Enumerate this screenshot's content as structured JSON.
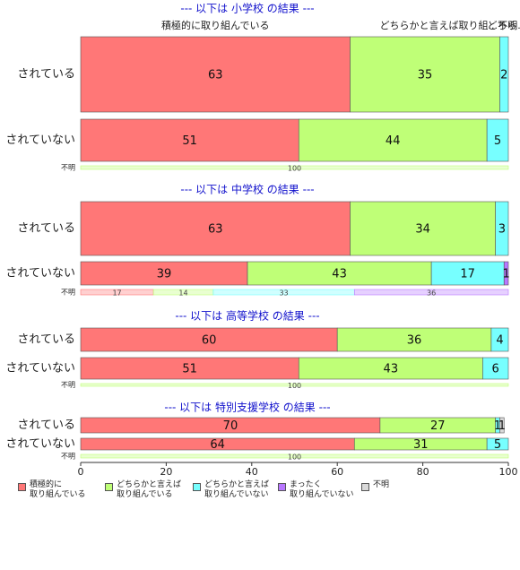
{
  "chart_data": {
    "type": "bar",
    "orientation": "horizontal",
    "stacked": true,
    "series": [
      {
        "name": "積極的に\n取り組んでいる",
        "color": "#ff7777"
      },
      {
        "name": "どちらかと言えば\n取り組んでいる",
        "color": "#bfff77"
      },
      {
        "name": "どちらかと言えば\n取り組んでいない",
        "color": "#77ffff"
      },
      {
        "name": "まったく\n取り組んでいない",
        "color": "#b877ff"
      },
      {
        "name": "不明",
        "color": "#d9d9d9"
      }
    ],
    "panels": [
      {
        "title": "--- 以下は 小学校 の結果 ---",
        "header_labels": [
          "積極的に取り組んでいる",
          "どちらかと言えば取り組...",
          "どちら",
          "不明."
        ],
        "categories": [
          "されている",
          "されていない",
          "不明"
        ],
        "values": [
          [
            63,
            35,
            2,
            null,
            null
          ],
          [
            51,
            44,
            5,
            null,
            null
          ],
          [
            null,
            100,
            null,
            null,
            null
          ]
        ]
      },
      {
        "title": "--- 以下は 中学校 の結果 ---",
        "categories": [
          "されている",
          "されていない",
          "不明"
        ],
        "values": [
          [
            63,
            34,
            3,
            null,
            null
          ],
          [
            39,
            43,
            17,
            1,
            null
          ],
          [
            17,
            14,
            33,
            36,
            null
          ]
        ]
      },
      {
        "title": "--- 以下は 高等学校 の結果 ---",
        "categories": [
          "されている",
          "されていない",
          "不明"
        ],
        "values": [
          [
            60,
            36,
            4,
            null,
            null
          ],
          [
            51,
            43,
            6,
            null,
            null
          ],
          [
            null,
            100,
            null,
            null,
            null
          ]
        ]
      },
      {
        "title": "--- 以下は 特別支援学校 の結果 ---",
        "categories": [
          "されている",
          "されていない",
          "不明"
        ],
        "values": [
          [
            70,
            27,
            1,
            null,
            1
          ],
          [
            64,
            31,
            5,
            null,
            null
          ],
          [
            null,
            100,
            null,
            null,
            null
          ]
        ]
      }
    ],
    "xlim": [
      0,
      100
    ],
    "xticks": [
      0,
      20,
      40,
      60,
      80,
      100
    ]
  }
}
